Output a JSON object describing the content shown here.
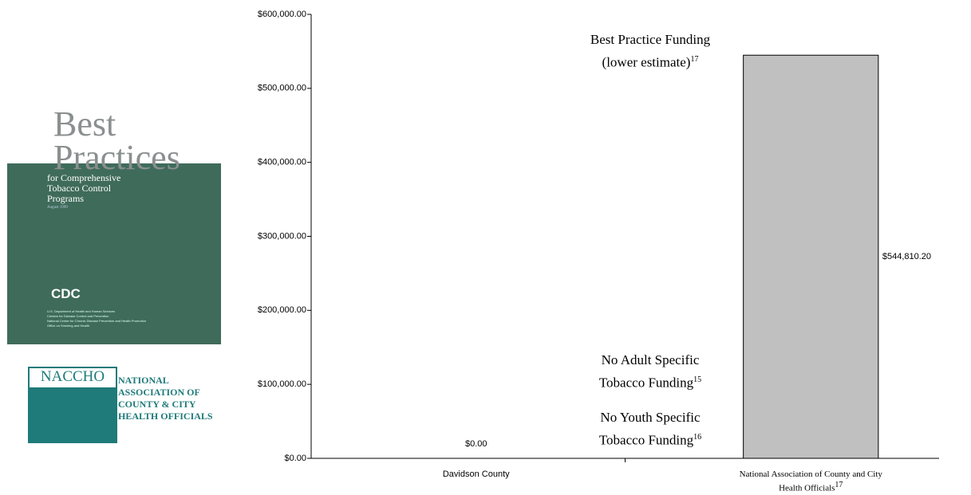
{
  "sidebar": {
    "cover": {
      "title_1": "Best",
      "title_2": "Practices",
      "subtitle": [
        "for Comprehensive",
        "Tobacco Control",
        "Programs"
      ],
      "date": "August 1999",
      "agency": "CDC",
      "fine_print": [
        "U.S. Department of Health and Human Services",
        "Centers for Disease Control and Prevention",
        "National Center for Chronic Disease Prevention and Health Promotion",
        "Office on Smoking and Health"
      ]
    },
    "naccho": {
      "acronym": "NACCHO",
      "name": [
        "NATIONAL",
        "ASSOCIATION OF",
        "COUNTY & CITY",
        "HEALTH OFFICIALS"
      ]
    }
  },
  "chart_data": {
    "type": "bar",
    "categories": [
      "Davidson County",
      "National Association of County and City Health Officials"
    ],
    "category_sups": [
      null,
      "17"
    ],
    "values": [
      0,
      544810.2
    ],
    "value_labels": [
      "$0.00",
      "$544,810.20"
    ],
    "color": "#c0c0c0",
    "ylim": [
      0,
      600000
    ],
    "yticks": [
      {
        "value": 0,
        "label": "$0.00"
      },
      {
        "value": 100000,
        "label": "$100,000.00"
      },
      {
        "value": 200000,
        "label": "$200,000.00"
      },
      {
        "value": 300000,
        "label": "$300,000.00"
      },
      {
        "value": 400000,
        "label": "$400,000.00"
      },
      {
        "value": 500000,
        "label": "$500,000.00"
      },
      {
        "value": 600000,
        "label": "$600,000.00"
      }
    ],
    "annotations": [
      {
        "lines": [
          "Best Practice Funding",
          "(lower estimate)"
        ],
        "sup": "17"
      },
      {
        "lines": [
          "No Adult Specific",
          "Tobacco Funding"
        ],
        "sup": "15"
      },
      {
        "lines": [
          "No Youth Specific",
          "Tobacco Funding"
        ],
        "sup": "16"
      }
    ]
  }
}
